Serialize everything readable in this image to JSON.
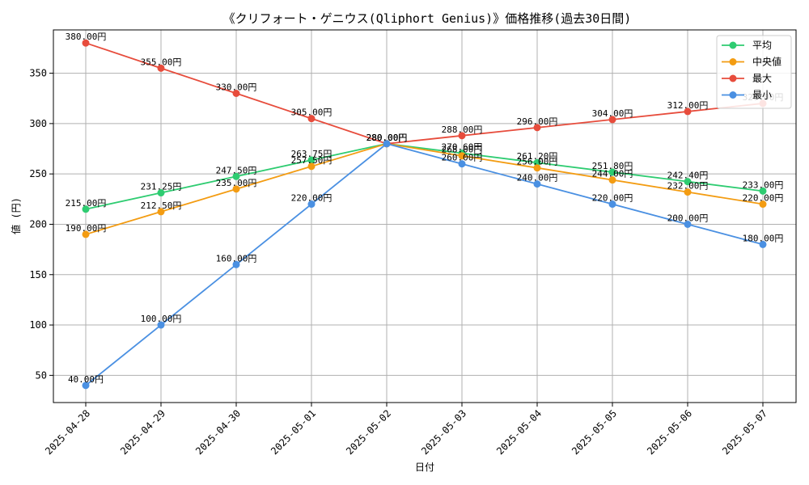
{
  "chart_data": {
    "type": "line",
    "title": "《クリフォート・ゲニウス(Qliphort Genius)》価格推移(過去30日間)",
    "xlabel": "日付",
    "ylabel": "値 (円)",
    "categories": [
      "2025-04-28",
      "2025-04-29",
      "2025-04-30",
      "2025-05-01",
      "2025-05-02",
      "2025-05-03",
      "2025-05-04",
      "2025-05-05",
      "2025-05-06",
      "2025-05-07"
    ],
    "y_ticks": [
      50,
      100,
      150,
      200,
      250,
      300,
      350
    ],
    "ylim": [
      23,
      393
    ],
    "grid": true,
    "legend": "top-right",
    "series": [
      {
        "name": "平均",
        "color": "#2ecc71",
        "values": [
          215.0,
          231.25,
          247.5,
          263.75,
          280.0,
          270.6,
          261.2,
          251.8,
          242.4,
          233.0
        ],
        "labels": [
          "215.00円",
          "231.25円",
          "247.50円",
          "263.75円",
          "280.00円",
          "270.60円",
          "261.20円",
          "251.80円",
          "242.40円",
          "233.00円"
        ]
      },
      {
        "name": "中央値",
        "color": "#f39c12",
        "values": [
          190.0,
          212.5,
          235.0,
          257.5,
          280.0,
          268.0,
          256.0,
          244.0,
          232.0,
          220.0
        ],
        "labels": [
          "190.00円",
          "212.50円",
          "235.00円",
          "257.50円",
          "280.00円",
          "268.00円",
          "256.00円",
          "244.00円",
          "232.00円",
          "220.00円"
        ]
      },
      {
        "name": "最大",
        "color": "#e74c3c",
        "values": [
          380.0,
          355.0,
          330.0,
          305.0,
          280.0,
          288.0,
          296.0,
          304.0,
          312.0,
          320.0
        ],
        "labels": [
          "380.00円",
          "355.00円",
          "330.00円",
          "305.00円",
          "280.00円",
          "288.00円",
          "296.00円",
          "304.00円",
          "312.00円",
          "320.00円"
        ]
      },
      {
        "name": "最小",
        "color": "#4a90e2",
        "values": [
          40.0,
          100.0,
          160.0,
          220.0,
          280.0,
          260.0,
          240.0,
          220.0,
          200.0,
          180.0
        ],
        "labels": [
          "40.00円",
          "100.00円",
          "160.00円",
          "220.00円",
          "280.00円",
          "260.00円",
          "240.00円",
          "220.00円",
          "200.00円",
          "180.00円"
        ]
      }
    ]
  }
}
